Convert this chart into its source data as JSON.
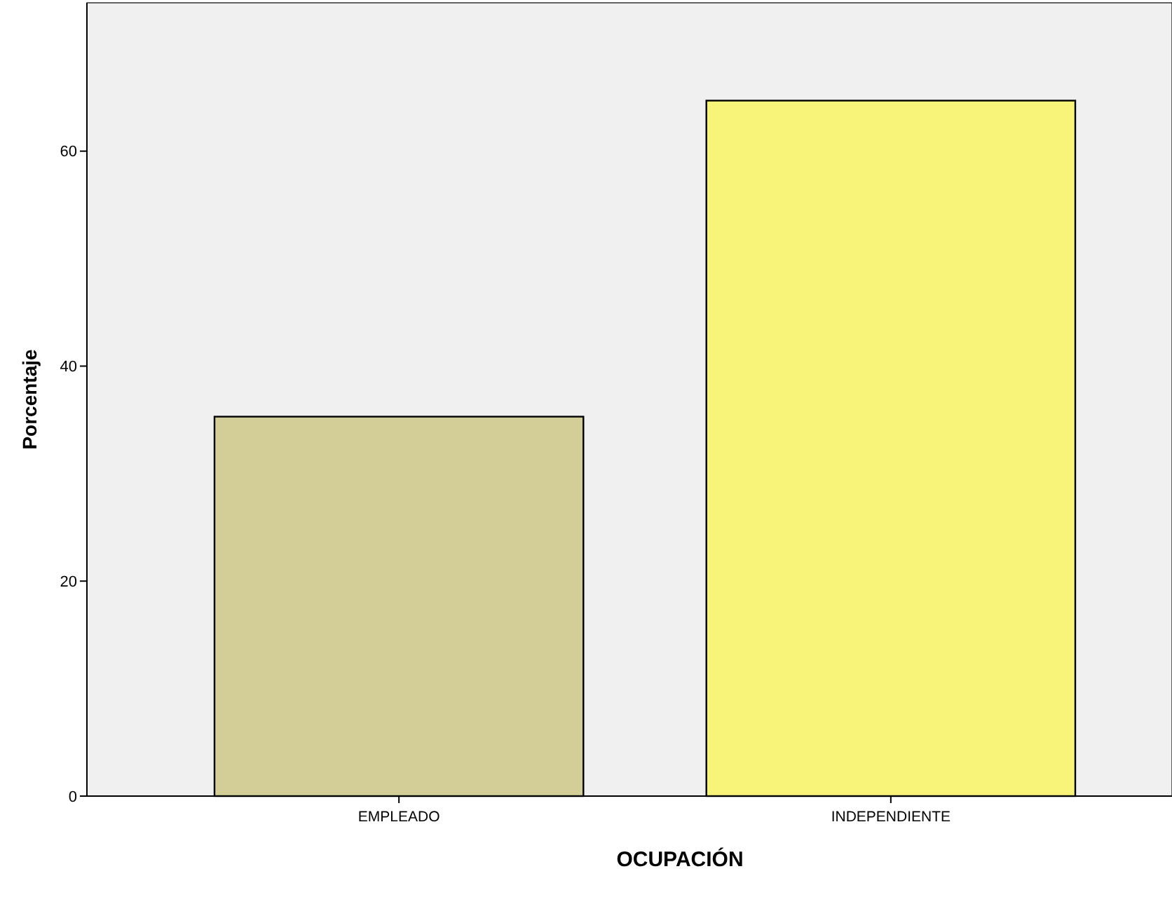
{
  "chart_data": {
    "type": "bar",
    "xlabel": "OCUPACIÓN",
    "ylabel": "Porcentaje",
    "categories": [
      "EMPLEADO",
      "INDEPENDIENTE"
    ],
    "values": [
      35.3,
      64.7
    ],
    "colors": [
      "#d3cd98",
      "#f8f47a"
    ],
    "ylim": [
      0,
      73.8
    ],
    "yticks": [
      0,
      20,
      40,
      60
    ],
    "grid": false
  }
}
